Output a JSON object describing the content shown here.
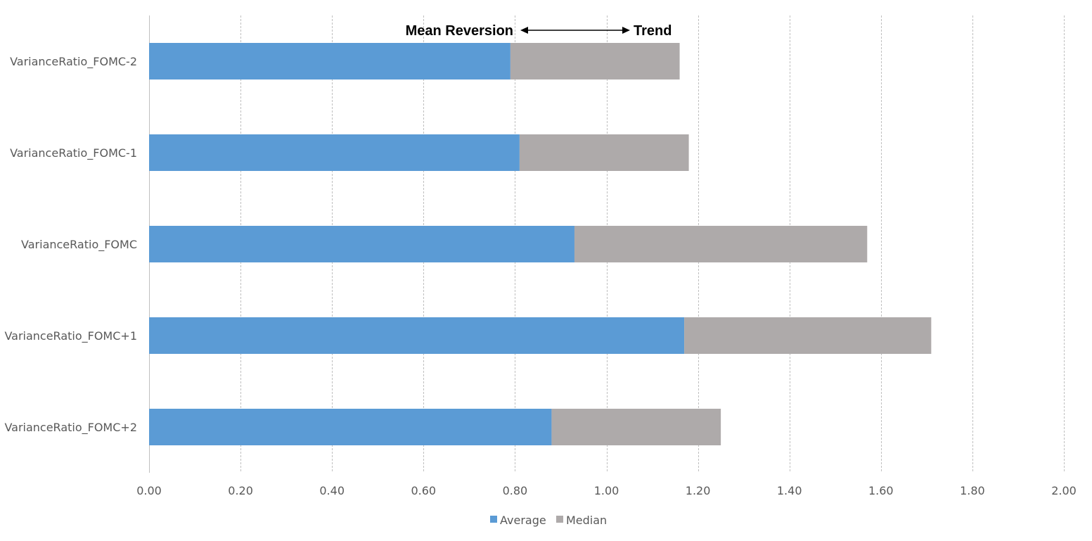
{
  "chart_data": {
    "type": "bar",
    "orientation": "horizontal",
    "stacked": true,
    "categories": [
      "VarianceRatio_FOMC-2",
      "VarianceRatio_FOMC-1",
      "VarianceRatio_FOMC",
      "VarianceRatio_FOMC+1",
      "VarianceRatio_FOMC+2"
    ],
    "series": [
      {
        "name": "Average",
        "color": "#5b9bd5",
        "values": [
          0.79,
          0.81,
          0.93,
          1.17,
          0.88
        ]
      },
      {
        "name": "Median",
        "color": "#aeaaaa",
        "values": [
          0.37,
          0.37,
          0.64,
          0.54,
          0.37
        ]
      }
    ],
    "xlim": [
      0,
      2
    ],
    "x_ticks": [
      "0.00",
      "0.20",
      "0.40",
      "0.60",
      "0.80",
      "1.00",
      "1.20",
      "1.40",
      "1.60",
      "1.80",
      "2.00"
    ],
    "grid": true,
    "legend_position": "bottom",
    "annotations": {
      "left_label": "Mean Reversion",
      "right_label": "Trend",
      "arrow": "double-headed"
    }
  }
}
